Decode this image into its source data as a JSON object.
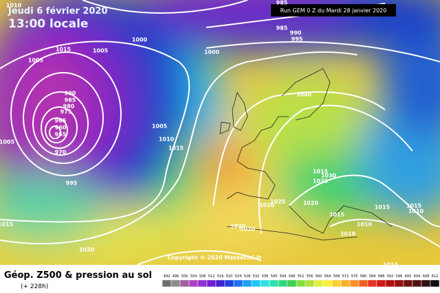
{
  "header": {
    "date": "Jeudi 6 février 2020",
    "time": "13:00 locale",
    "run": "Run GEM 0 Z du Mardi 28 janvier 2020"
  },
  "copyright": "Copyright © 2020 Meteociel.fr",
  "legend": {
    "title": "Géop. Z500 & pression au sol",
    "lead": "(+ 228h)",
    "labels": [
      492,
      496,
      500,
      504,
      508,
      512,
      516,
      520,
      524,
      528,
      532,
      536,
      540,
      544,
      548,
      552,
      556,
      560,
      564,
      568,
      572,
      576,
      580,
      584,
      588,
      592,
      596,
      600,
      604,
      608,
      612
    ]
  },
  "isobars": [
    1010,
    1005,
    1015,
    1005,
    1000,
    1000,
    985,
    985,
    990,
    995,
    990,
    985,
    980,
    975,
    965,
    960,
    955,
    970,
    1005,
    995,
    1005,
    1010,
    1015,
    1040,
    1015,
    1030,
    1025,
    1025,
    1020,
    1020,
    1020,
    1020,
    1015,
    1015,
    1010,
    1015,
    1010,
    1010,
    1015,
    1020,
    1015
  ]
}
